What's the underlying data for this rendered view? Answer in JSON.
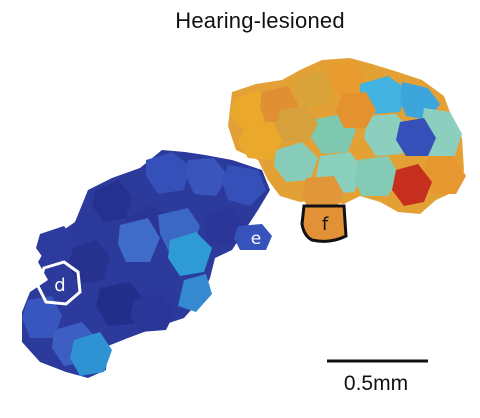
{
  "figure": {
    "title": "Hearing-lesioned",
    "scale_bar_label": "0.5mm",
    "labels": {
      "d": "d",
      "e": "e",
      "f": "f"
    }
  },
  "colors": {
    "dark_navy": "#26318f",
    "navy": "#2c3a9c",
    "blue": "#3550b8",
    "mid_blue": "#3f6cc8",
    "sky_blue": "#2e9ad6",
    "cyan": "#42b2e0",
    "teal": "#7fc8b0",
    "light_teal": "#8ccfbf",
    "yellow_orange": "#e8a92e",
    "orange": "#e18f32",
    "gold": "#d8a43a",
    "red": "#c62f1e",
    "outline_f": "#111111",
    "outline_d": "#ffffff"
  }
}
